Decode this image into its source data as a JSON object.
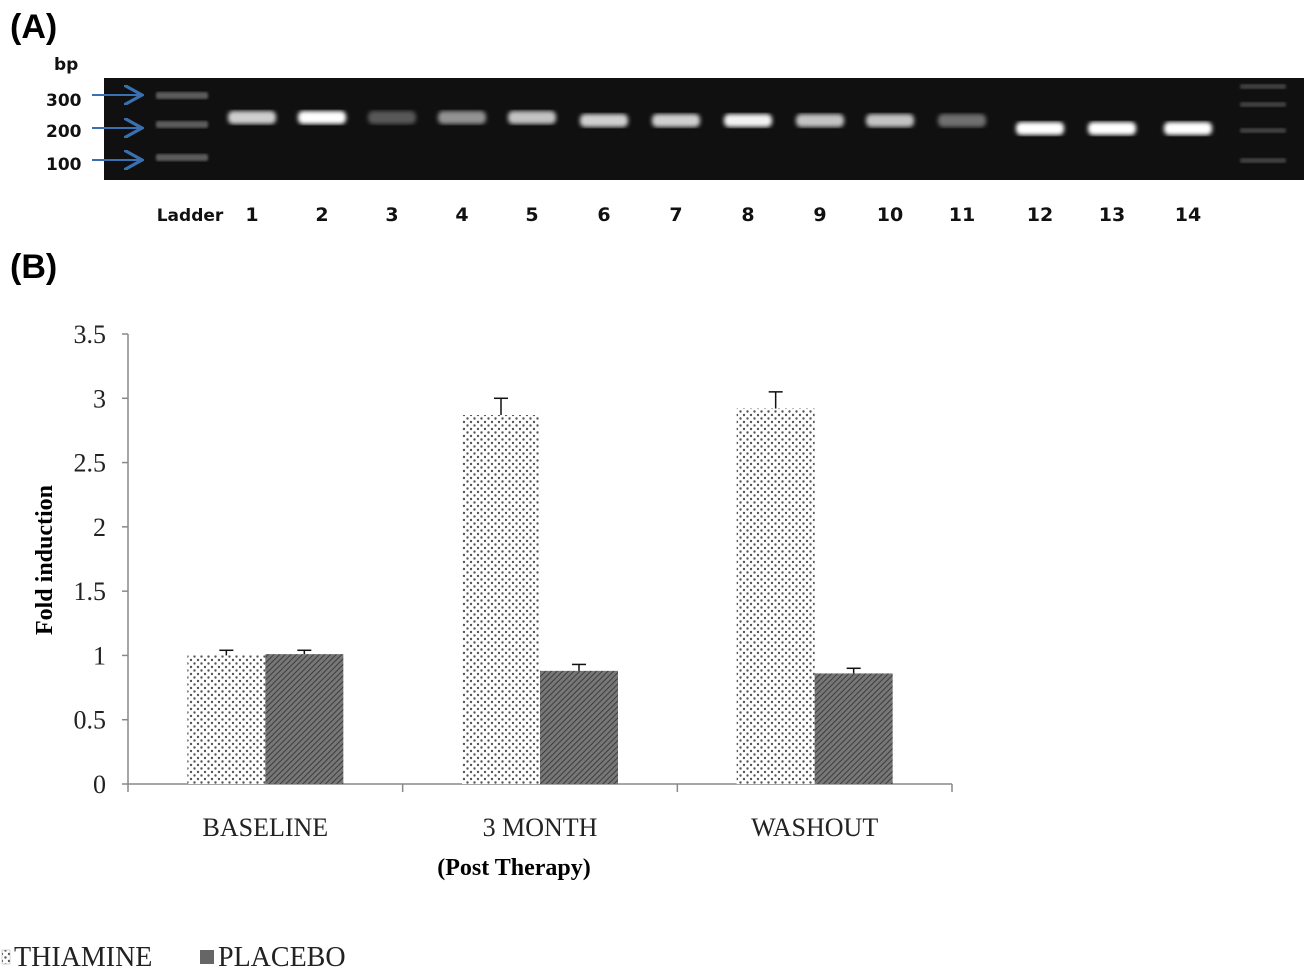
{
  "panel_a": {
    "label": "(A)",
    "unit_label": "bp",
    "ladder_marks": [
      "300",
      "200",
      "100"
    ],
    "lane_labels": [
      "Ladder",
      "1",
      "2",
      "3",
      "4",
      "5",
      "6",
      "7",
      "8",
      "9",
      "10",
      "11",
      "12",
      "13",
      "14"
    ],
    "band_intensity": [
      0.0,
      0.8,
      1.0,
      0.3,
      0.55,
      0.75,
      0.8,
      0.8,
      0.95,
      0.75,
      0.75,
      0.4,
      1.0,
      1.0,
      1.0
    ],
    "colors": {
      "gel_background": "#101010",
      "band": "#ffffff",
      "arrow": "#3a6fb0"
    }
  },
  "panel_b": {
    "label": "(B)",
    "xlabel_sub": "(Post Therapy)",
    "legend": [
      "THIAMINE",
      "PLACEBO"
    ]
  },
  "chart_data": {
    "type": "bar",
    "categories": [
      "BASELINE",
      "3 MONTH",
      "WASHOUT"
    ],
    "series": [
      {
        "name": "THIAMINE",
        "values": [
          1.0,
          2.87,
          2.92
        ],
        "errors": [
          0.04,
          0.13,
          0.13
        ],
        "pattern": "dotted"
      },
      {
        "name": "PLACEBO",
        "values": [
          1.01,
          0.88,
          0.86
        ],
        "errors": [
          0.03,
          0.05,
          0.04
        ],
        "pattern": "hatched"
      }
    ],
    "ylabel": "Fold induction",
    "xlabel": "",
    "ylim": [
      0,
      3.5
    ],
    "yticks": [
      "0",
      "0.5",
      "1",
      "1.5",
      "2",
      "2.5",
      "3",
      "3.5"
    ],
    "grid": false,
    "legend_position": "bottom-left"
  }
}
